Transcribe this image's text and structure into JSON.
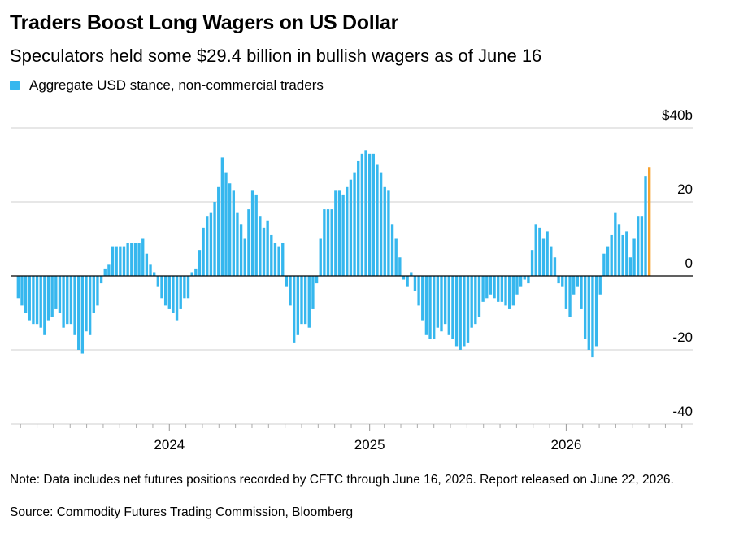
{
  "chart_data": {
    "type": "bar",
    "title": "Traders Boost Long Wagers on US Dollar",
    "subtitle": "Speculators held some $29.4 billion in bullish wagers as of June 16",
    "note": "Note: Data includes net futures positions recorded by CFTC through June 16, 2026. Report released on June 22, 2026.",
    "source": "Source: Commodity Futures Trading Commission, Bloomberg",
    "categories": [
      null,
      null,
      null,
      null,
      null,
      null,
      null,
      null,
      null,
      null,
      null,
      null,
      null,
      null,
      null,
      null,
      null,
      null,
      null,
      null,
      null,
      null,
      null,
      null,
      null,
      null,
      null,
      null,
      null,
      null,
      null,
      null,
      null,
      null,
      null,
      null,
      null,
      null,
      null,
      null,
      "2024",
      null,
      null,
      null,
      null,
      null,
      null,
      null,
      null,
      null,
      null,
      null,
      null,
      null,
      null,
      null,
      null,
      null,
      null,
      null,
      null,
      null,
      null,
      null,
      null,
      null,
      null,
      null,
      null,
      null,
      null,
      null,
      null,
      null,
      null,
      null,
      null,
      null,
      null,
      null,
      null,
      null,
      null,
      null,
      null,
      null,
      null,
      null,
      null,
      null,
      null,
      null,
      null,
      "2025",
      null,
      null,
      null,
      null,
      null,
      null,
      null,
      null,
      null,
      null,
      null,
      null,
      null,
      null,
      null,
      null,
      null,
      null,
      null,
      null,
      null,
      null,
      null,
      null,
      null,
      null,
      null,
      null,
      null,
      null,
      null,
      null,
      null,
      null,
      null,
      null,
      null,
      null,
      null,
      null,
      null,
      null,
      null,
      null,
      null,
      null,
      null,
      null,
      null,
      null,
      null,
      "2026",
      null,
      null,
      null,
      null,
      null,
      null,
      null,
      null,
      null,
      null,
      null,
      null,
      null,
      null,
      null,
      null,
      null,
      null,
      null,
      null,
      null,
      null
    ],
    "series": [
      {
        "name": "Aggregate USD stance, non-commercial traders",
        "color": "#36b7ee",
        "values": [
          -6,
          -8,
          -10,
          -12,
          -13,
          -13,
          -14,
          -16,
          -12,
          -11,
          -9,
          -10,
          -14,
          -13,
          -13,
          -16,
          -20,
          -21,
          -15,
          -16,
          -10,
          -8,
          -2,
          2,
          3,
          8,
          8,
          8,
          8,
          9,
          9,
          9,
          9,
          10,
          6,
          3,
          1,
          -3,
          -6,
          -8,
          -9,
          -10,
          -12,
          -9,
          -6,
          -6,
          1,
          2,
          7,
          13,
          16,
          17,
          20,
          24,
          32,
          28,
          25,
          23,
          17,
          14,
          10,
          18,
          23,
          22,
          16,
          13,
          15,
          11,
          9,
          8,
          9,
          -3,
          -8,
          -18,
          -16,
          -13,
          -13,
          -14,
          -9,
          -2,
          10,
          18,
          18,
          18,
          23,
          23,
          22,
          24,
          26,
          28,
          31,
          33,
          34,
          33,
          33,
          30,
          28,
          24,
          23,
          14,
          10,
          5,
          -1,
          -3,
          1,
          -4,
          -8,
          -12,
          -16,
          -17,
          -17,
          -14,
          -15,
          -13,
          -16,
          -17,
          -19,
          -20,
          -19,
          -18,
          -14,
          -13,
          -11,
          -7,
          -6,
          -5,
          -6,
          -7,
          -7,
          -8,
          -9,
          -8,
          -5,
          -3,
          -1,
          -2,
          7,
          14,
          13,
          10,
          12,
          8,
          5,
          -2,
          -3,
          -9,
          -11,
          -5,
          -3,
          -9,
          -17,
          -20,
          -22,
          -19,
          -5,
          6,
          8,
          11,
          17,
          14,
          11,
          12,
          5,
          10,
          16,
          16,
          27,
          29.4
        ]
      }
    ],
    "highlight_last_color": "#f7a12d",
    "ylim": [
      -40,
      40
    ],
    "yticks": [
      {
        "value": 40,
        "label": "$40b"
      },
      20,
      0,
      -20,
      -40
    ],
    "grid": true
  }
}
